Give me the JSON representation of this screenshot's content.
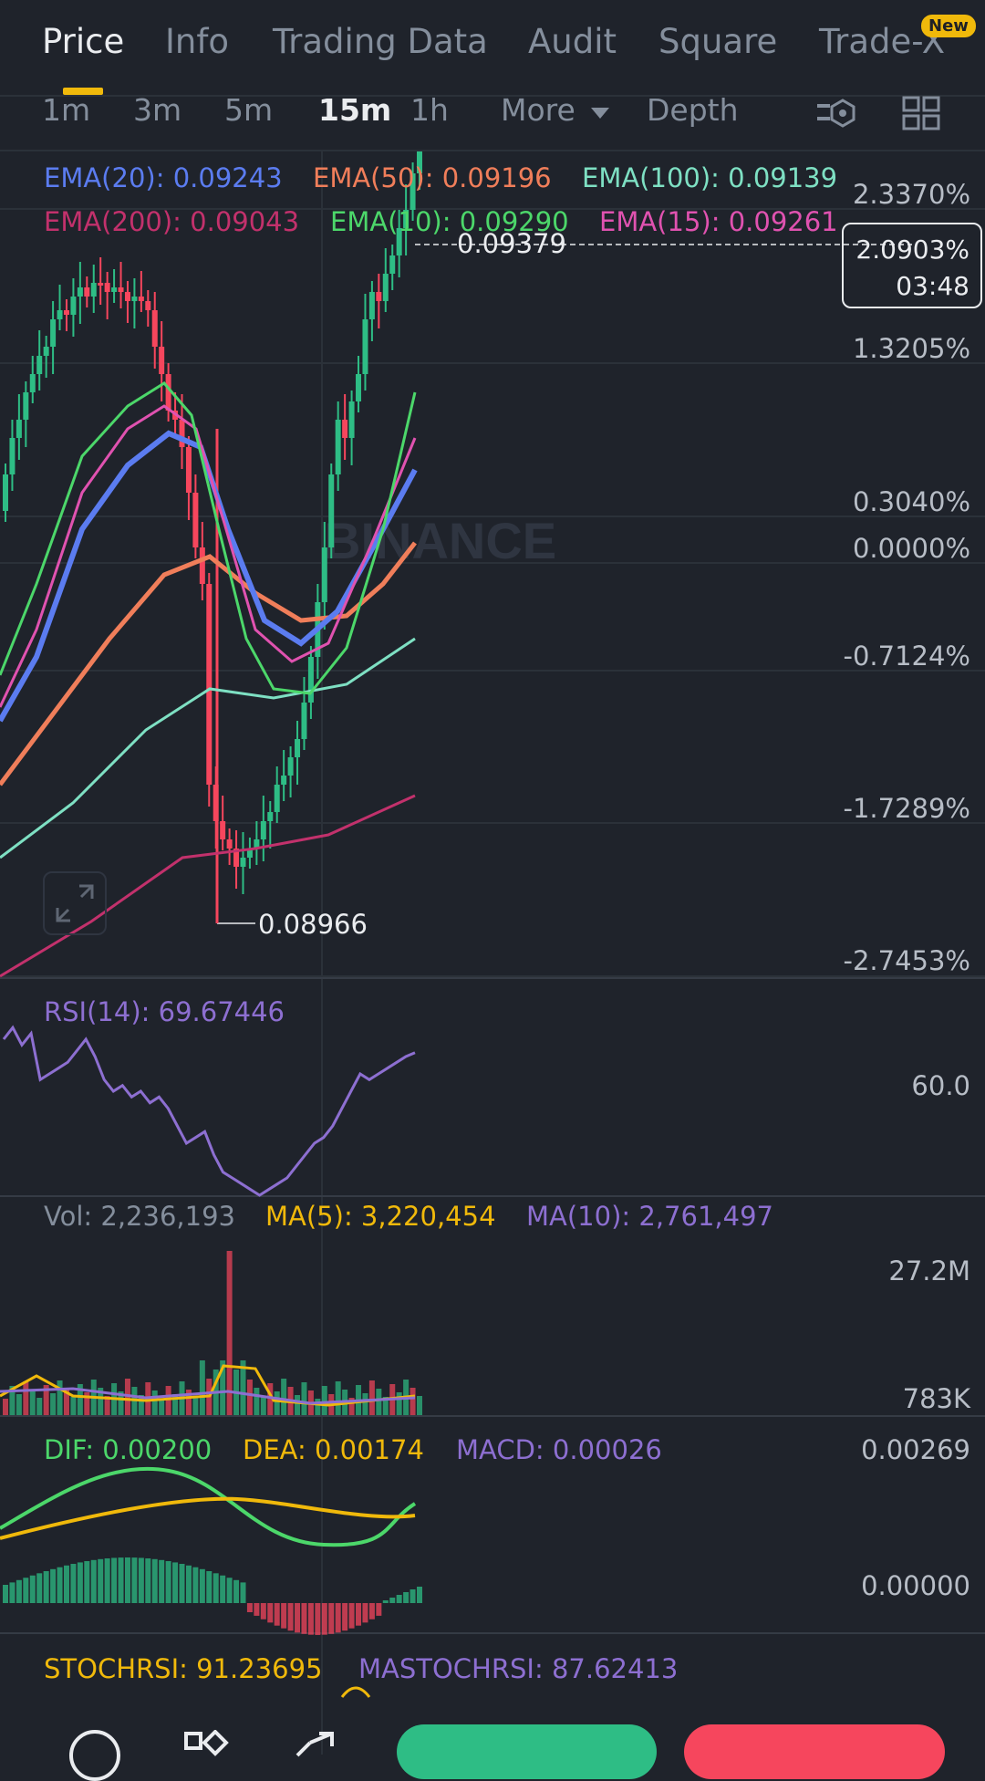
{
  "tabs": [
    {
      "label": "Price",
      "active": true
    },
    {
      "label": "Info",
      "active": false
    },
    {
      "label": "Trading Data",
      "active": false
    },
    {
      "label": "Audit",
      "active": false
    },
    {
      "label": "Square",
      "active": false
    },
    {
      "label": "Trade-X",
      "active": false
    }
  ],
  "new_badge": "New",
  "intervals": [
    {
      "label": "1m",
      "active": false
    },
    {
      "label": "3m",
      "active": false
    },
    {
      "label": "5m",
      "active": false
    },
    {
      "label": "15m",
      "active": true
    },
    {
      "label": "1h",
      "active": false
    }
  ],
  "more_label": "More",
  "depth_label": "Depth",
  "ema_legend": [
    {
      "text": "EMA(20): 0.09243",
      "color": "#5b7cf0"
    },
    {
      "text": "EMA(50): 0.09196",
      "color": "#f07e5a"
    },
    {
      "text": "EMA(100): 0.09139",
      "color": "#7ee0c3"
    },
    {
      "text": "EMA(200): 0.09043",
      "color": "#c2316c"
    },
    {
      "text": "EMA(10): 0.09290",
      "color": "#4cd76a"
    },
    {
      "text": "EMA(15): 0.09261",
      "color": "#e052b0"
    }
  ],
  "price_axis": [
    "2.3370%",
    "1.3205%",
    "0.3040%",
    "0.0000%",
    "-0.7124%",
    "-1.7289%",
    "-2.7453%"
  ],
  "high_label": "0.09379",
  "low_label": "0.08966",
  "current_price_box": {
    "pct": "2.0903%",
    "countdown": "03:48"
  },
  "watermark": "BINANCE",
  "rsi": {
    "label": "RSI(14): 69.67446",
    "axis": "60.0"
  },
  "volume": {
    "vol": "Vol: 2,236,193",
    "ma5": "MA(5): 3,220,454",
    "ma10": "MA(10): 2,761,497",
    "axis_top": "27.2M",
    "axis_bottom": "783K"
  },
  "macd": {
    "dif": "DIF: 0.00200",
    "dea": "DEA: 0.00174",
    "macd": "MACD: 0.00026",
    "axis_top": "0.00269",
    "axis_zero": "0.00000"
  },
  "stochrsi": {
    "stoch": "STOCHRSI: 91.23695",
    "ma": "MASTOCHRSI: 87.62413"
  },
  "colors": {
    "up": "#2ebd85",
    "down": "#f6465d",
    "accent": "#f0b90b",
    "bg": "#1f232b",
    "rsi": "#8d6fd1"
  },
  "chart_data": {
    "type": "line",
    "candles_count": 62,
    "rsi_values": [
      72,
      74,
      71,
      73,
      65,
      66,
      67,
      68,
      70,
      72,
      69,
      65,
      63,
      64,
      62,
      63,
      61,
      62,
      60,
      57,
      54,
      55,
      56,
      52,
      49,
      48,
      47,
      46,
      45,
      46,
      47,
      48,
      50,
      52,
      54,
      55,
      57,
      60,
      63,
      66,
      65,
      66,
      67,
      68,
      69,
      69.67
    ]
  }
}
